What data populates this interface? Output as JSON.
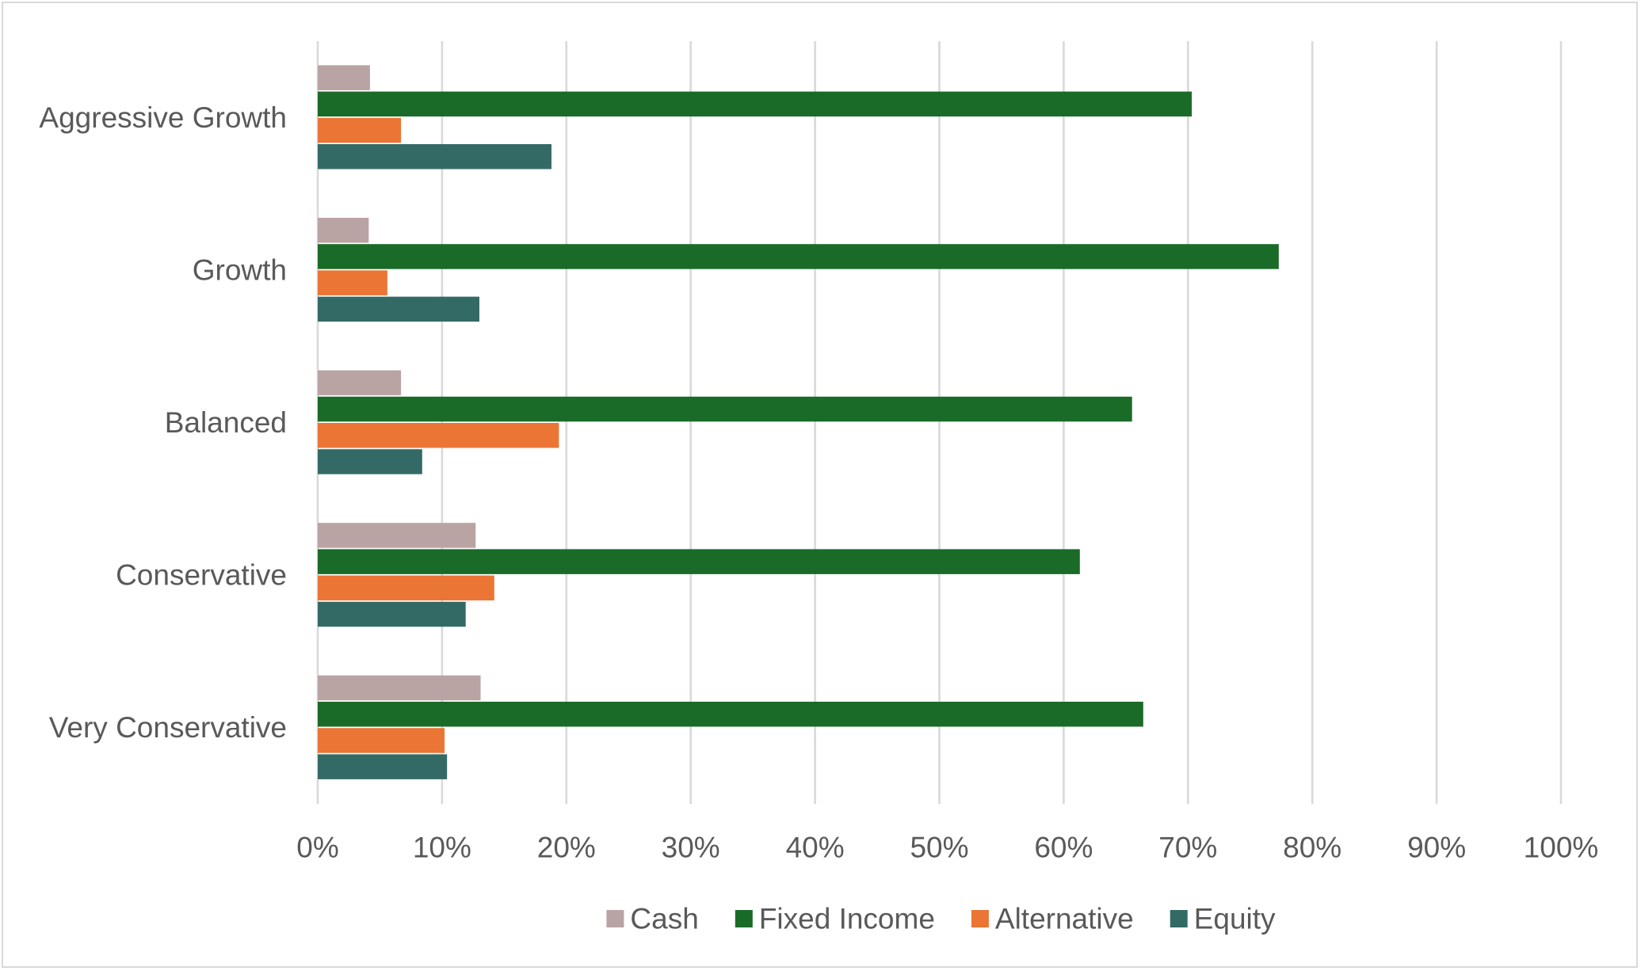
{
  "chart_data": {
    "type": "bar",
    "orientation": "horizontal",
    "categories": [
      "Aggressive Growth",
      "Growth",
      "Balanced",
      "Conservative",
      "Very Conservative"
    ],
    "series": [
      {
        "name": "Cash",
        "color": "#b9a3a3",
        "values": [
          4.2,
          4.1,
          6.7,
          12.7,
          13.1
        ]
      },
      {
        "name": "Fixed Income",
        "color": "#1a6b28",
        "values": [
          70.3,
          77.3,
          65.5,
          61.3,
          66.4
        ]
      },
      {
        "name": "Alternative",
        "color": "#eb7535",
        "values": [
          6.7,
          5.6,
          19.4,
          14.2,
          10.2
        ]
      },
      {
        "name": "Equity",
        "color": "#336a66",
        "values": [
          18.8,
          13.0,
          8.4,
          11.9,
          10.4
        ]
      }
    ],
    "x_ticks": [
      "0%",
      "10%",
      "20%",
      "30%",
      "40%",
      "50%",
      "60%",
      "70%",
      "80%",
      "90%",
      "100%"
    ],
    "xlim": [
      0,
      100
    ],
    "x_unit": "%",
    "grid": "vertical",
    "legend_position": "bottom",
    "title": "",
    "xlabel": "",
    "ylabel": ""
  }
}
